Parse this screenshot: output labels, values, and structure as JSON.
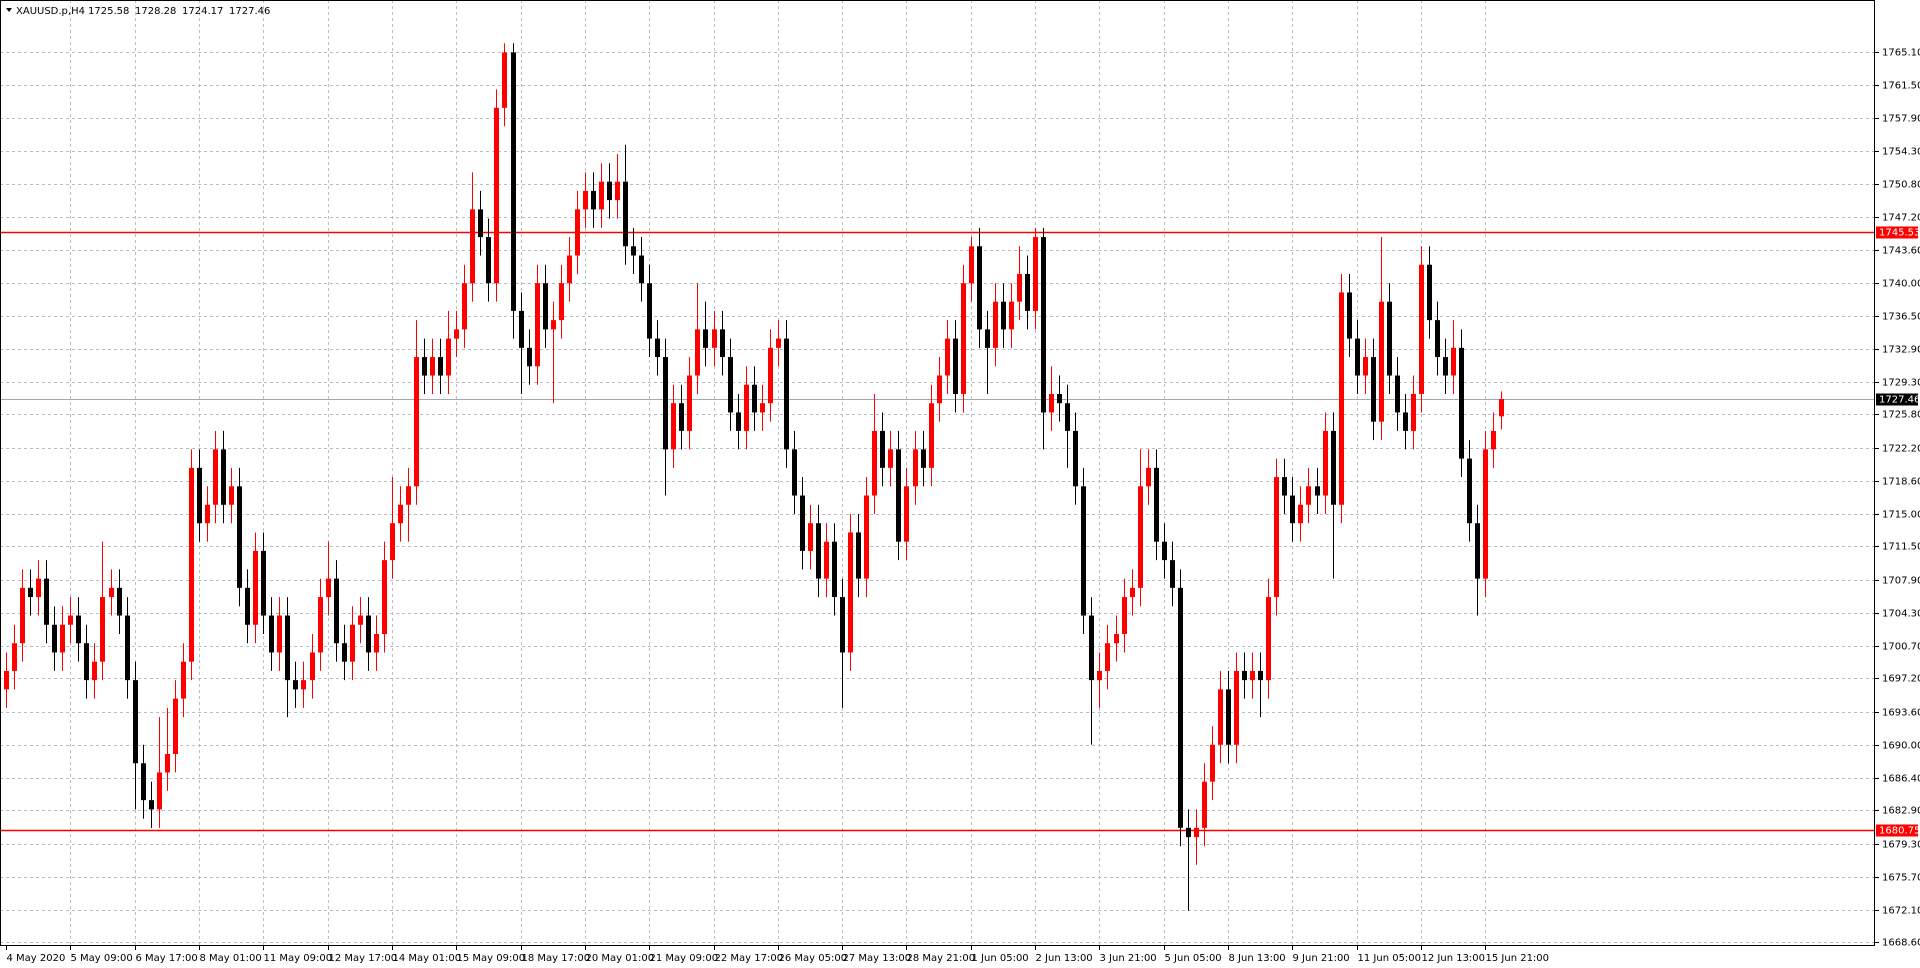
{
  "chart_data": {
    "type": "candlestick",
    "title": "XAUUSD.p,H4",
    "up_color": "#ff0000",
    "down_color": "#000000",
    "grid": true,
    "ylim": [
      1668.2,
      1770.68
    ],
    "yticks": [
      {
        "value": 1765.1,
        "label": "1765.10"
      },
      {
        "value": 1761.5,
        "label": "1761.50"
      },
      {
        "value": 1757.9,
        "label": "1757.90"
      },
      {
        "value": 1754.3,
        "label": "1754.30"
      },
      {
        "value": 1750.8,
        "label": "1750.80"
      },
      {
        "value": 1747.2,
        "label": "1747.20"
      },
      {
        "value": 1743.6,
        "label": "1743.60"
      },
      {
        "value": 1740.0,
        "label": "1740.00"
      },
      {
        "value": 1736.5,
        "label": "1736.50"
      },
      {
        "value": 1732.9,
        "label": "1732.90"
      },
      {
        "value": 1729.3,
        "label": "1729.30"
      },
      {
        "value": 1725.8,
        "label": "1725.80"
      },
      {
        "value": 1722.2,
        "label": "1722.20"
      },
      {
        "value": 1718.6,
        "label": "1718.60"
      },
      {
        "value": 1715.0,
        "label": "1715.00"
      },
      {
        "value": 1711.5,
        "label": "1711.50"
      },
      {
        "value": 1707.9,
        "label": "1707.90"
      },
      {
        "value": 1704.3,
        "label": "1704.30"
      },
      {
        "value": 1700.7,
        "label": "1700.70"
      },
      {
        "value": 1697.2,
        "label": "1697.20"
      },
      {
        "value": 1693.6,
        "label": "1693.60"
      },
      {
        "value": 1690.0,
        "label": "1690.00"
      },
      {
        "value": 1686.4,
        "label": "1686.40"
      },
      {
        "value": 1682.9,
        "label": "1682.90"
      },
      {
        "value": 1679.3,
        "label": "1679.30"
      },
      {
        "value": 1675.7,
        "label": "1675.70"
      },
      {
        "value": 1672.1,
        "label": "1672.10"
      },
      {
        "value": 1668.6,
        "label": "1668.60"
      }
    ],
    "categories": [
      "4 May 2020",
      "5 May 09:00",
      "6 May 17:00",
      "8 May 01:00",
      "11 May 09:00",
      "12 May 17:00",
      "14 May 01:00",
      "15 May 09:00",
      "18 May 17:00",
      "20 May 01:00",
      "21 May 09:00",
      "22 May 17:00",
      "26 May 05:00",
      "27 May 13:00",
      "28 May 21:00",
      "1 Jun 05:00",
      "2 Jun 13:00",
      "3 Jun 21:00",
      "5 Jun 05:00",
      "8 Jun 13:00",
      "9 Jun 21:00",
      "11 Jun 05:00",
      "12 Jun 13:00",
      "15 Jun 21:00"
    ],
    "hlines": [
      {
        "value": 1745.53,
        "color": "#ff0000"
      },
      {
        "value": 1680.75,
        "color": "#ff0000"
      },
      {
        "value": 1727.46,
        "color": "#a0a8b4"
      }
    ],
    "candles": [
      [
        1696,
        1700,
        1694,
        1698
      ],
      [
        1698,
        1703,
        1696,
        1701
      ],
      [
        1701,
        1709,
        1699,
        1707
      ],
      [
        1707,
        1709,
        1704,
        1706
      ],
      [
        1706,
        1710,
        1704,
        1708
      ],
      [
        1708,
        1710,
        1701,
        1703
      ],
      [
        1703,
        1705,
        1698,
        1700
      ],
      [
        1700,
        1705,
        1698,
        1703
      ],
      [
        1703,
        1706,
        1701,
        1704
      ],
      [
        1704,
        1706,
        1699,
        1701
      ],
      [
        1701,
        1703,
        1695,
        1697
      ],
      [
        1697,
        1701,
        1695,
        1699
      ],
      [
        1699,
        1712,
        1697,
        1706
      ],
      [
        1706,
        1709,
        1704,
        1707
      ],
      [
        1707,
        1709,
        1702,
        1704
      ],
      [
        1704,
        1706,
        1695,
        1697
      ],
      [
        1697,
        1699,
        1683,
        1688
      ],
      [
        1688,
        1690,
        1682,
        1684
      ],
      [
        1684,
        1686,
        1681,
        1683
      ],
      [
        1683,
        1693,
        1681,
        1687
      ],
      [
        1687,
        1694,
        1685,
        1689
      ],
      [
        1689,
        1697,
        1687,
        1695
      ],
      [
        1695,
        1701,
        1693,
        1699
      ],
      [
        1699,
        1722,
        1697,
        1720
      ],
      [
        1720,
        1722,
        1712,
        1714
      ],
      [
        1714,
        1718,
        1712,
        1716
      ],
      [
        1716,
        1724,
        1714,
        1722
      ],
      [
        1722,
        1724,
        1714,
        1716
      ],
      [
        1716,
        1720,
        1714,
        1718
      ],
      [
        1718,
        1720,
        1705,
        1707
      ],
      [
        1707,
        1709,
        1701,
        1703
      ],
      [
        1703,
        1713,
        1701,
        1711
      ],
      [
        1711,
        1713,
        1702,
        1704
      ],
      [
        1704,
        1706,
        1698,
        1700
      ],
      [
        1700,
        1706,
        1698,
        1704
      ],
      [
        1704,
        1706,
        1693,
        1697
      ],
      [
        1697,
        1699,
        1694,
        1696
      ],
      [
        1696,
        1699,
        1694,
        1697
      ],
      [
        1697,
        1702,
        1695,
        1700
      ],
      [
        1700,
        1708,
        1698,
        1706
      ],
      [
        1706,
        1712,
        1704,
        1708
      ],
      [
        1708,
        1710,
        1699,
        1701
      ],
      [
        1701,
        1703,
        1697,
        1699
      ],
      [
        1699,
        1705,
        1697,
        1703
      ],
      [
        1703,
        1706,
        1701,
        1704
      ],
      [
        1704,
        1706,
        1698,
        1700
      ],
      [
        1700,
        1704,
        1698,
        1702
      ],
      [
        1702,
        1712,
        1700,
        1710
      ],
      [
        1710,
        1719,
        1708,
        1714
      ],
      [
        1714,
        1718,
        1712,
        1716
      ],
      [
        1716,
        1720,
        1712,
        1718
      ],
      [
        1718,
        1736,
        1716,
        1732
      ],
      [
        1732,
        1734,
        1728,
        1730
      ],
      [
        1730,
        1734,
        1728,
        1732
      ],
      [
        1732,
        1734,
        1728,
        1730
      ],
      [
        1730,
        1737,
        1728,
        1734
      ],
      [
        1734,
        1737,
        1732,
        1735
      ],
      [
        1735,
        1742,
        1733,
        1740
      ],
      [
        1740,
        1752,
        1738,
        1748
      ],
      [
        1748,
        1750,
        1743,
        1745
      ],
      [
        1745,
        1747,
        1738,
        1740
      ],
      [
        1740,
        1761,
        1738,
        1759
      ],
      [
        1759,
        1766,
        1757,
        1765
      ],
      [
        1765,
        1766,
        1734,
        1737
      ],
      [
        1737,
        1739,
        1728,
        1733
      ],
      [
        1733,
        1735,
        1729,
        1731
      ],
      [
        1731,
        1742,
        1729,
        1740
      ],
      [
        1740,
        1742,
        1733,
        1735
      ],
      [
        1735,
        1738,
        1727,
        1736
      ],
      [
        1736,
        1742,
        1734,
        1740
      ],
      [
        1740,
        1745,
        1738,
        1743
      ],
      [
        1743,
        1750,
        1741,
        1748
      ],
      [
        1748,
        1752,
        1746,
        1750
      ],
      [
        1750,
        1752,
        1746,
        1748
      ],
      [
        1748,
        1753,
        1746,
        1751
      ],
      [
        1751,
        1753,
        1747,
        1749
      ],
      [
        1749,
        1754,
        1747,
        1751
      ],
      [
        1751,
        1755,
        1742,
        1744
      ],
      [
        1744,
        1746,
        1741,
        1743
      ],
      [
        1743,
        1745,
        1738,
        1740
      ],
      [
        1740,
        1742,
        1732,
        1734
      ],
      [
        1734,
        1736,
        1730,
        1732
      ],
      [
        1732,
        1734,
        1717,
        1722
      ],
      [
        1722,
        1729,
        1720,
        1727
      ],
      [
        1727,
        1729,
        1722,
        1724
      ],
      [
        1724,
        1732,
        1722,
        1730
      ],
      [
        1730,
        1740,
        1728,
        1735
      ],
      [
        1735,
        1738,
        1731,
        1733
      ],
      [
        1733,
        1737,
        1731,
        1735
      ],
      [
        1735,
        1737,
        1730,
        1732
      ],
      [
        1732,
        1734,
        1724,
        1726
      ],
      [
        1726,
        1728,
        1722,
        1724
      ],
      [
        1724,
        1731,
        1722,
        1729
      ],
      [
        1729,
        1731,
        1724,
        1726
      ],
      [
        1726,
        1729,
        1724,
        1727
      ],
      [
        1727,
        1735,
        1725,
        1733
      ],
      [
        1733,
        1736,
        1731,
        1734
      ],
      [
        1734,
        1736,
        1720,
        1722
      ],
      [
        1722,
        1724,
        1715,
        1717
      ],
      [
        1717,
        1719,
        1709,
        1711
      ],
      [
        1711,
        1716,
        1709,
        1714
      ],
      [
        1714,
        1716,
        1706,
        1708
      ],
      [
        1708,
        1714,
        1706,
        1712
      ],
      [
        1712,
        1714,
        1704,
        1706
      ],
      [
        1706,
        1708,
        1694,
        1700
      ],
      [
        1700,
        1715,
        1698,
        1713
      ],
      [
        1713,
        1715,
        1706,
        1708
      ],
      [
        1708,
        1719,
        1706,
        1717
      ],
      [
        1717,
        1728,
        1715,
        1724
      ],
      [
        1724,
        1726,
        1718,
        1720
      ],
      [
        1720,
        1724,
        1718,
        1722
      ],
      [
        1722,
        1724,
        1710,
        1712
      ],
      [
        1712,
        1720,
        1710,
        1718
      ],
      [
        1718,
        1724,
        1716,
        1722
      ],
      [
        1722,
        1724,
        1718,
        1720
      ],
      [
        1720,
        1729,
        1718,
        1727
      ],
      [
        1727,
        1732,
        1725,
        1730
      ],
      [
        1730,
        1736,
        1728,
        1734
      ],
      [
        1734,
        1736,
        1726,
        1728
      ],
      [
        1728,
        1742,
        1726,
        1740
      ],
      [
        1740,
        1745,
        1738,
        1744
      ],
      [
        1744,
        1746,
        1733,
        1735
      ],
      [
        1735,
        1737,
        1728,
        1733
      ],
      [
        1733,
        1740,
        1731,
        1738
      ],
      [
        1738,
        1740,
        1733,
        1735
      ],
      [
        1735,
        1740,
        1733,
        1738
      ],
      [
        1738,
        1744,
        1736,
        1741
      ],
      [
        1741,
        1743,
        1735,
        1737
      ],
      [
        1737,
        1746,
        1735,
        1745
      ],
      [
        1745,
        1746,
        1722,
        1726
      ],
      [
        1726,
        1731,
        1724,
        1728
      ],
      [
        1728,
        1730,
        1725,
        1727
      ],
      [
        1727,
        1729,
        1720,
        1724
      ],
      [
        1724,
        1726,
        1716,
        1718
      ],
      [
        1718,
        1720,
        1702,
        1704
      ],
      [
        1704,
        1706,
        1690,
        1697
      ],
      [
        1697,
        1700,
        1694,
        1698
      ],
      [
        1698,
        1703,
        1696,
        1701
      ],
      [
        1701,
        1704,
        1699,
        1702
      ],
      [
        1702,
        1708,
        1700,
        1706
      ],
      [
        1706,
        1709,
        1704,
        1707
      ],
      [
        1707,
        1722,
        1705,
        1718
      ],
      [
        1718,
        1722,
        1716,
        1720
      ],
      [
        1720,
        1722,
        1710,
        1712
      ],
      [
        1712,
        1714,
        1708,
        1710
      ],
      [
        1710,
        1712,
        1705,
        1707
      ],
      [
        1707,
        1709,
        1679,
        1681
      ],
      [
        1681,
        1683,
        1672,
        1680
      ],
      [
        1680,
        1683,
        1677,
        1681
      ],
      [
        1681,
        1688,
        1679,
        1686
      ],
      [
        1686,
        1692,
        1684,
        1690
      ],
      [
        1690,
        1698,
        1688,
        1696
      ],
      [
        1696,
        1698,
        1688,
        1690
      ],
      [
        1690,
        1700,
        1688,
        1698
      ],
      [
        1698,
        1700,
        1695,
        1697
      ],
      [
        1697,
        1700,
        1695,
        1698
      ],
      [
        1698,
        1700,
        1693,
        1697
      ],
      [
        1697,
        1708,
        1695,
        1706
      ],
      [
        1706,
        1721,
        1704,
        1719
      ],
      [
        1719,
        1721,
        1715,
        1717
      ],
      [
        1717,
        1719,
        1712,
        1714
      ],
      [
        1714,
        1718,
        1712,
        1716
      ],
      [
        1716,
        1720,
        1714,
        1718
      ],
      [
        1718,
        1720,
        1715,
        1717
      ],
      [
        1717,
        1726,
        1715,
        1724
      ],
      [
        1724,
        1726,
        1708,
        1716
      ],
      [
        1716,
        1741,
        1714,
        1739
      ],
      [
        1739,
        1741,
        1732,
        1734
      ],
      [
        1734,
        1736,
        1728,
        1730
      ],
      [
        1730,
        1734,
        1728,
        1732
      ],
      [
        1732,
        1734,
        1723,
        1725
      ],
      [
        1725,
        1745,
        1723,
        1738
      ],
      [
        1738,
        1740,
        1728,
        1730
      ],
      [
        1730,
        1732,
        1724,
        1726
      ],
      [
        1726,
        1728,
        1722,
        1724
      ],
      [
        1724,
        1730,
        1722,
        1728
      ],
      [
        1728,
        1744,
        1726,
        1742
      ],
      [
        1742,
        1744,
        1734,
        1736
      ],
      [
        1736,
        1738,
        1730,
        1732
      ],
      [
        1732,
        1734,
        1728,
        1730
      ],
      [
        1730,
        1736,
        1728,
        1733
      ],
      [
        1733,
        1735,
        1719,
        1721
      ],
      [
        1721,
        1723,
        1712,
        1714
      ],
      [
        1714,
        1716,
        1704,
        1708
      ],
      [
        1708,
        1724,
        1706,
        1722
      ],
      [
        1722,
        1726,
        1720,
        1724
      ],
      [
        1725.58,
        1728.28,
        1724.17,
        1727.46
      ]
    ]
  }
}
